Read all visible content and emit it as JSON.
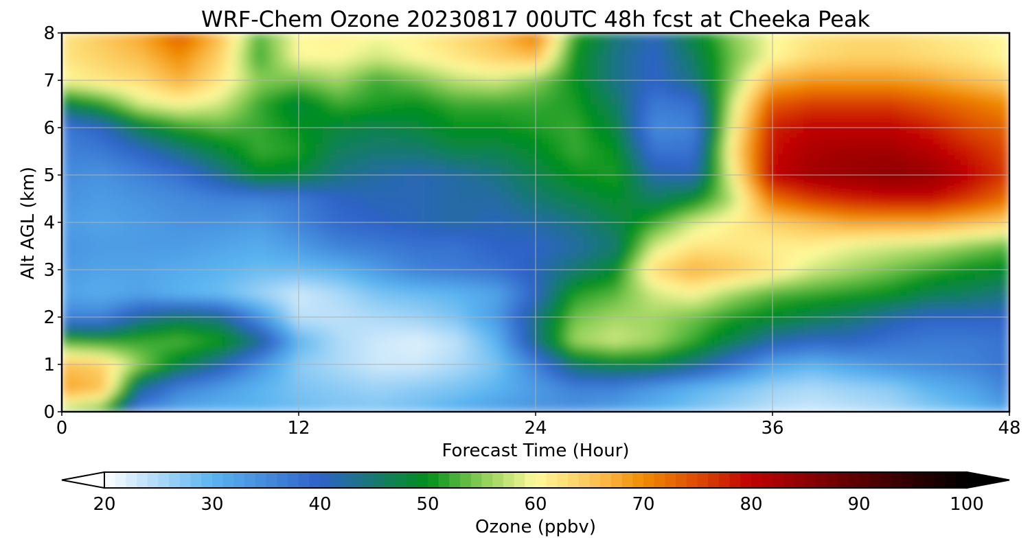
{
  "chart_data": {
    "type": "heatmap",
    "title": "WRF-Chem Ozone  20230817 00UTC 48h fcst at Cheeka Peak",
    "xlabel": "Forecast Time (Hour)",
    "ylabel": "Alt AGL (km)",
    "xlim": [
      0,
      48
    ],
    "ylim": [
      0,
      8
    ],
    "xticks": [
      "0",
      "12",
      "24",
      "36",
      "48"
    ],
    "yticks": [
      "0",
      "1",
      "2",
      "3",
      "4",
      "5",
      "6",
      "7",
      "8"
    ],
    "grid": true,
    "colorbar": {
      "label": "Ozone  (ppbv)",
      "min": 20,
      "max": 100,
      "ticks": [
        "20",
        "30",
        "40",
        "50",
        "60",
        "70",
        "80",
        "90",
        "100"
      ],
      "extend": "both",
      "stops": [
        [
          20,
          "#ffffff"
        ],
        [
          30,
          "#5ab4f0"
        ],
        [
          40,
          "#2e62c8"
        ],
        [
          50,
          "#00901a"
        ],
        [
          55,
          "#8acd55"
        ],
        [
          60,
          "#fffa9c"
        ],
        [
          66,
          "#fbbd4c"
        ],
        [
          70,
          "#f08c00"
        ],
        [
          75,
          "#dd4a00"
        ],
        [
          80,
          "#c00000"
        ],
        [
          90,
          "#5a0000"
        ],
        [
          100,
          "#000000"
        ]
      ]
    },
    "x": [
      0,
      2,
      4,
      6,
      8,
      10,
      12,
      14,
      16,
      18,
      20,
      22,
      24,
      26,
      28,
      30,
      32,
      34,
      36,
      38,
      40,
      42,
      44,
      46,
      48
    ],
    "y": [
      0,
      0.5,
      1,
      1.5,
      2,
      2.5,
      3,
      3.5,
      4,
      4.5,
      5,
      5.5,
      6,
      6.5,
      7,
      7.5,
      8
    ],
    "z": [
      [
        56,
        52,
        35,
        31,
        30,
        30,
        29,
        28,
        28,
        29,
        31,
        33,
        34,
        34,
        32,
        30,
        28,
        26,
        24,
        23,
        24,
        25,
        27,
        29,
        32
      ],
      [
        68,
        66,
        43,
        36,
        33,
        30,
        28,
        27,
        26,
        27,
        28,
        30,
        33,
        36,
        36,
        33,
        30,
        28,
        26,
        25,
        26,
        27,
        30,
        32,
        36
      ],
      [
        66,
        64,
        55,
        48,
        42,
        34,
        27,
        25,
        23,
        23,
        25,
        28,
        36,
        46,
        48,
        48,
        44,
        38,
        32,
        30,
        32,
        34,
        35,
        36,
        38
      ],
      [
        52,
        51,
        52,
        53,
        51,
        44,
        30,
        25,
        23,
        22,
        24,
        30,
        44,
        56,
        58,
        56,
        52,
        47,
        42,
        40,
        40,
        38,
        37,
        37,
        38
      ],
      [
        36,
        36,
        43,
        46,
        44,
        34,
        24,
        24,
        25,
        26,
        28,
        33,
        44,
        54,
        56,
        56,
        54,
        51,
        49,
        47,
        45,
        42,
        40,
        40,
        40
      ],
      [
        32,
        31,
        32,
        30,
        29,
        26,
        23,
        25,
        28,
        29,
        30,
        32,
        40,
        51,
        53,
        58,
        60,
        56,
        53,
        52,
        51,
        50,
        47,
        46,
        44
      ],
      [
        33,
        32,
        32,
        31,
        30,
        29,
        29,
        30,
        33,
        36,
        37,
        38,
        41,
        45,
        49,
        63,
        67,
        65,
        62,
        58,
        56,
        54,
        52,
        50,
        49
      ],
      [
        34,
        33,
        33,
        33,
        32,
        31,
        33,
        36,
        37,
        38,
        38,
        40,
        40,
        42,
        45,
        58,
        62,
        62,
        61,
        61,
        59,
        58,
        57,
        55,
        53
      ],
      [
        33,
        32,
        33,
        34,
        34,
        33,
        36,
        39,
        40,
        41,
        42,
        41,
        42,
        44,
        47,
        52,
        58,
        61,
        64,
        66,
        68,
        68,
        68,
        66,
        64
      ],
      [
        34,
        33,
        34,
        35,
        36,
        36,
        37,
        40,
        41,
        41,
        42,
        42,
        45,
        47,
        49,
        46,
        49,
        57,
        72,
        76,
        78,
        79,
        79,
        76,
        72
      ],
      [
        35,
        34,
        36,
        38,
        43,
        49,
        48,
        44,
        42,
        41,
        42,
        44,
        47,
        50,
        51,
        42,
        41,
        60,
        80,
        83,
        84,
        85,
        84,
        80,
        76
      ],
      [
        36,
        37,
        40,
        44,
        48,
        52,
        51,
        46,
        45,
        45,
        47,
        47,
        49,
        52,
        50,
        38,
        38,
        62,
        79,
        82,
        83,
        83,
        81,
        78,
        75
      ],
      [
        37,
        40,
        47,
        51,
        53,
        52,
        50,
        48,
        47,
        48,
        50,
        50,
        51,
        52,
        48,
        35,
        36,
        60,
        78,
        80,
        80,
        80,
        78,
        75,
        73
      ],
      [
        47,
        51,
        58,
        60,
        58,
        52,
        48,
        52,
        51,
        50,
        52,
        52,
        52,
        51,
        46,
        37,
        38,
        58,
        74,
        76,
        76,
        76,
        74,
        72,
        70
      ],
      [
        60,
        62,
        63,
        67,
        62,
        55,
        54,
        56,
        52,
        54,
        57,
        58,
        55,
        50,
        44,
        40,
        44,
        55,
        67,
        69,
        69,
        69,
        68,
        66,
        64
      ],
      [
        62,
        64,
        66,
        70,
        64,
        52,
        60,
        60,
        58,
        60,
        62,
        64,
        66,
        50,
        44,
        40,
        46,
        54,
        60,
        63,
        64,
        64,
        63,
        62,
        60
      ],
      [
        62,
        65,
        68,
        74,
        66,
        53,
        60,
        61,
        60,
        61,
        63,
        66,
        72,
        52,
        45,
        41,
        48,
        55,
        60,
        62,
        63,
        63,
        62,
        61,
        60
      ]
    ]
  }
}
